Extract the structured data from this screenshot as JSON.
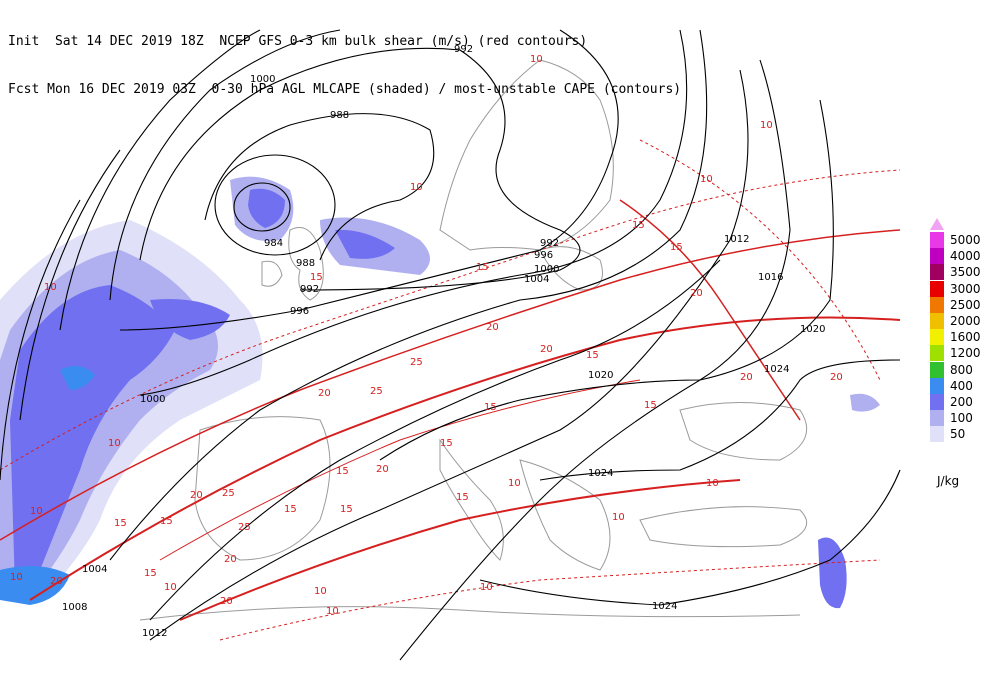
{
  "header": {
    "line1": "Init  Sat 14 DEC 2019 18Z  NCEP GFS 0-3 km bulk shear (m/s) (red contours)",
    "line2": "Fcst Mon 16 DEC 2019 03Z  0-30 hPa AGL MLCAPE (shaded) / most-unstable CAPE (contours)"
  },
  "legend": {
    "units": "J/kg",
    "items": [
      {
        "label": "5000",
        "color": "#e838e8"
      },
      {
        "label": "4000",
        "color": "#c000c0"
      },
      {
        "label": "3500",
        "color": "#a00060"
      },
      {
        "label": "3000",
        "color": "#e80000"
      },
      {
        "label": "2500",
        "color": "#f07800"
      },
      {
        "label": "2000",
        "color": "#f0c000"
      },
      {
        "label": "1600",
        "color": "#f0f000"
      },
      {
        "label": "1200",
        "color": "#a0e000"
      },
      {
        "label": "800",
        "color": "#30c030"
      },
      {
        "label": "400",
        "color": "#3a8cf0"
      },
      {
        "label": "200",
        "color": "#7070f0"
      },
      {
        "label": "100",
        "color": "#b0b0f0"
      },
      {
        "label": "50",
        "color": "#e0e0f8"
      }
    ]
  },
  "isobar_labels": [
    "992",
    "1000",
    "988",
    "984",
    "988",
    "992",
    "996",
    "1000",
    "996",
    "992",
    "1004",
    "1012",
    "1016",
    "1020",
    "1024",
    "1020",
    "1024",
    "1024",
    "1004",
    "1008",
    "1012",
    "1000"
  ],
  "shear_labels": [
    "10",
    "10",
    "10",
    "10",
    "10",
    "15",
    "15",
    "15",
    "15",
    "15",
    "15",
    "20",
    "20",
    "20",
    "20",
    "20",
    "20",
    "25",
    "25",
    "25",
    "25",
    "20",
    "15",
    "10",
    "10",
    "15",
    "15",
    "15",
    "10",
    "10",
    "10",
    "10",
    "10",
    "15",
    "20",
    "15",
    "15",
    "20",
    "20",
    "15",
    "10",
    "10",
    "10",
    "15",
    "20"
  ],
  "colors": {
    "isobar": "#000000",
    "shear": "#d62020",
    "coast": "#9a9a9a",
    "cape_50": "#e0e0f8",
    "cape_100": "#b0b0f0",
    "cape_200": "#7070f0",
    "cape_400": "#3a8cf0"
  }
}
